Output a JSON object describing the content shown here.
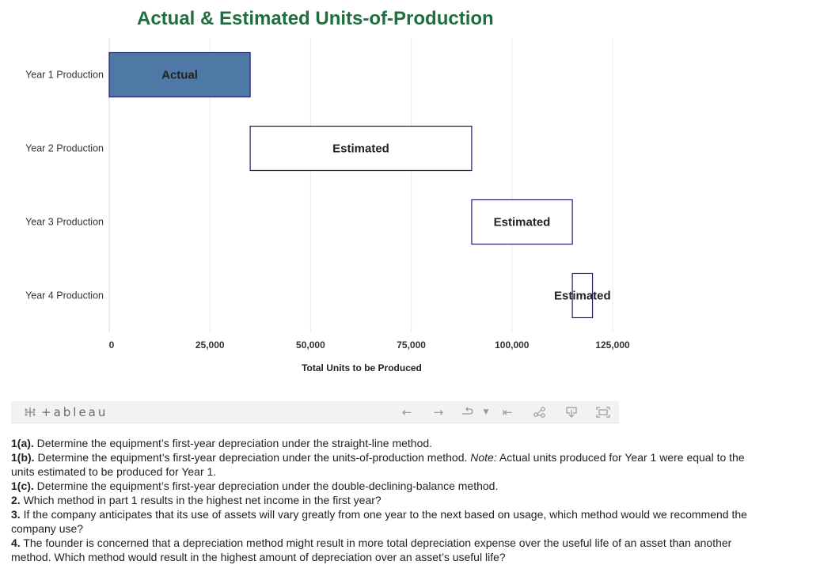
{
  "chart_data": {
    "type": "bar",
    "orientation": "horizontal",
    "subtype": "waterfall",
    "title": "Actual & Estimated Units-of-Production",
    "title_color": "#1e6e3f",
    "xlabel": "Total Units to be Produced",
    "ylabel": "",
    "xlim": [
      0,
      125000
    ],
    "x_ticks": [
      0,
      25000,
      50000,
      75000,
      100000,
      125000
    ],
    "x_tick_labels": [
      "0",
      "25,000",
      "50,000",
      "75,000",
      "100,000",
      "125,000"
    ],
    "grid": true,
    "categories": [
      "Year 1 Production",
      "Year 2 Production",
      "Year 3 Production",
      "Year 4 Production"
    ],
    "bars": [
      {
        "category": "Year 1 Production",
        "start": 0,
        "end": 35000,
        "value": 35000,
        "label": "Actual",
        "fill": "#4e79a7"
      },
      {
        "category": "Year 2 Production",
        "start": 35000,
        "end": 90000,
        "value": 55000,
        "label": "Estimated",
        "fill": "#ffffff"
      },
      {
        "category": "Year 3 Production",
        "start": 90000,
        "end": 115000,
        "value": 25000,
        "label": "Estimated",
        "fill": "#ffffff"
      },
      {
        "category": "Year 4 Production",
        "start": 115000,
        "end": 120000,
        "value": 5000,
        "label": "Estimated",
        "fill": "#ffffff"
      }
    ],
    "bar_border_color": "#1b1f6e"
  },
  "toolbar": {
    "logo_text": "+ableau",
    "icons": [
      "undo-icon",
      "redo-icon",
      "revert-icon",
      "revert-dropdown-icon",
      "reset-icon",
      "share-icon",
      "download-icon",
      "fullscreen-icon"
    ]
  },
  "questions": [
    {
      "num": "1(a).",
      "text": " Determine the equipment’s first-year depreciation under the straight-line method."
    },
    {
      "num": "1(b).",
      "text": " Determine the equipment’s first-year depreciation under the units-of-production method. ",
      "note_label": "Note:",
      "note_text": " Actual units produced for Year 1 were equal to the units estimated to be produced for Year 1."
    },
    {
      "num": "1(c).",
      "text": " Determine the equipment’s first-year depreciation under the double-declining-balance method."
    },
    {
      "num": "2.",
      "text": " Which method in part 1 results in the highest net income in the first year?"
    },
    {
      "num": "3.",
      "text": " If the company anticipates that its use of assets will vary greatly from one year to the next based on usage, which method would we recommend the company use?"
    },
    {
      "num": "4.",
      "text": " The founder is concerned that a depreciation method might result in more total depreciation expense over the useful life of an asset than another method. Which method would result in the highest amount of depreciation over an asset’s useful life?"
    }
  ]
}
